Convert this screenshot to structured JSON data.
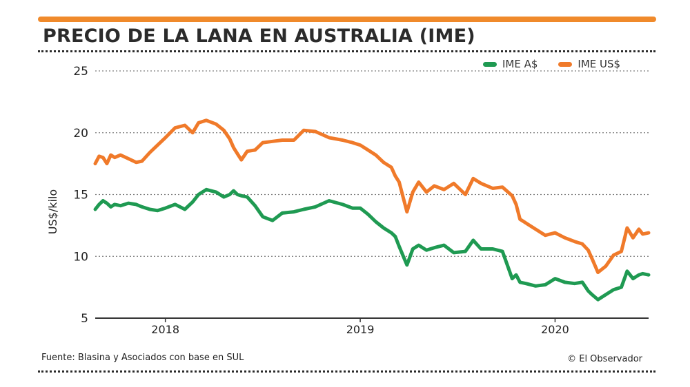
{
  "header": {
    "title": "PRECIO DE LA LANA EN AUSTRALIA (IME)"
  },
  "footer": {
    "source": "Fuente: Blasina y Asociados con base en SUL",
    "credit": "© El Observador"
  },
  "colors": {
    "accent": "#f08a2b",
    "aud_line": "#1f9a52",
    "usd_line": "#f07a2a",
    "grid": "#7a7a7a",
    "axis": "#333333",
    "text": "#222222"
  },
  "chart_data": {
    "type": "line",
    "title": "PRECIO DE LA LANA EN AUSTRALIA (IME)",
    "xlabel": "",
    "ylabel": "US$/kilo",
    "ylim": [
      5,
      25
    ],
    "yticks": [
      5,
      10,
      15,
      20,
      25
    ],
    "xlim": [
      2017.64,
      2020.48
    ],
    "xticks": [
      {
        "value": 2018.0,
        "label": "2018"
      },
      {
        "value": 2019.0,
        "label": "2019"
      },
      {
        "value": 2020.0,
        "label": "2020"
      }
    ],
    "grid": true,
    "legend": "top-right",
    "series": [
      {
        "name": "IME A$",
        "color": "#1f9a52",
        "x": [
          2017.64,
          2017.66,
          2017.68,
          2017.7,
          2017.72,
          2017.74,
          2017.77,
          2017.81,
          2017.85,
          2017.88,
          2017.92,
          2017.96,
          2018.0,
          2018.05,
          2018.1,
          2018.14,
          2018.17,
          2018.21,
          2018.26,
          2018.3,
          2018.33,
          2018.35,
          2018.37,
          2018.39,
          2018.42,
          2018.46,
          2018.5,
          2018.55,
          2018.6,
          2018.66,
          2018.71,
          2018.77,
          2018.84,
          2018.91,
          2018.96,
          2019.0,
          2019.04,
          2019.08,
          2019.12,
          2019.16,
          2019.18,
          2019.2,
          2019.24,
          2019.27,
          2019.3,
          2019.34,
          2019.38,
          2019.43,
          2019.48,
          2019.54,
          2019.58,
          2019.62,
          2019.68,
          2019.73,
          2019.78,
          2019.8,
          2019.82,
          2019.85,
          2019.9,
          2019.95,
          2020.0,
          2020.05,
          2020.1,
          2020.14,
          2020.17,
          2020.19,
          2020.22,
          2020.26,
          2020.3,
          2020.34,
          2020.37,
          2020.4,
          2020.43,
          2020.45,
          2020.48
        ],
        "values": [
          13.8,
          14.2,
          14.5,
          14.3,
          14.0,
          14.2,
          14.1,
          14.3,
          14.2,
          14.0,
          13.8,
          13.7,
          13.9,
          14.2,
          13.8,
          14.4,
          15.0,
          15.4,
          15.2,
          14.8,
          15.0,
          15.3,
          15.0,
          14.9,
          14.8,
          14.1,
          13.2,
          12.9,
          13.5,
          13.6,
          13.8,
          14.0,
          14.5,
          14.2,
          13.9,
          13.9,
          13.4,
          12.8,
          12.3,
          11.9,
          11.6,
          10.8,
          9.3,
          10.6,
          10.9,
          10.5,
          10.7,
          10.9,
          10.3,
          10.4,
          11.3,
          10.6,
          10.6,
          10.4,
          8.2,
          8.5,
          7.9,
          7.8,
          7.6,
          7.7,
          8.2,
          7.9,
          7.8,
          7.9,
          7.2,
          6.9,
          6.5,
          6.9,
          7.3,
          7.5,
          8.8,
          8.2,
          8.5,
          8.6,
          8.5
        ]
      },
      {
        "name": "IME US$",
        "color": "#f07a2a",
        "x": [
          2017.64,
          2017.66,
          2017.68,
          2017.7,
          2017.72,
          2017.74,
          2017.77,
          2017.81,
          2017.85,
          2017.88,
          2017.92,
          2017.96,
          2018.0,
          2018.05,
          2018.1,
          2018.14,
          2018.17,
          2018.21,
          2018.26,
          2018.3,
          2018.33,
          2018.35,
          2018.37,
          2018.39,
          2018.42,
          2018.46,
          2018.5,
          2018.55,
          2018.6,
          2018.66,
          2018.71,
          2018.77,
          2018.84,
          2018.91,
          2018.96,
          2019.0,
          2019.04,
          2019.08,
          2019.12,
          2019.16,
          2019.18,
          2019.2,
          2019.24,
          2019.27,
          2019.3,
          2019.34,
          2019.38,
          2019.43,
          2019.48,
          2019.54,
          2019.58,
          2019.62,
          2019.68,
          2019.73,
          2019.78,
          2019.8,
          2019.82,
          2019.85,
          2019.9,
          2019.95,
          2020.0,
          2020.05,
          2020.1,
          2020.14,
          2020.17,
          2020.19,
          2020.22,
          2020.26,
          2020.3,
          2020.34,
          2020.37,
          2020.4,
          2020.43,
          2020.45,
          2020.48
        ],
        "values": [
          17.5,
          18.1,
          18.0,
          17.5,
          18.2,
          18.0,
          18.2,
          17.9,
          17.6,
          17.7,
          18.4,
          19.0,
          19.6,
          20.4,
          20.6,
          20.0,
          20.8,
          21.0,
          20.7,
          20.2,
          19.5,
          18.8,
          18.3,
          17.8,
          18.5,
          18.6,
          19.2,
          19.3,
          19.4,
          19.4,
          20.2,
          20.1,
          19.6,
          19.4,
          19.2,
          19.0,
          18.6,
          18.2,
          17.6,
          17.2,
          16.5,
          16.0,
          13.6,
          15.2,
          16.0,
          15.2,
          15.7,
          15.4,
          15.9,
          15.0,
          16.3,
          15.9,
          15.5,
          15.6,
          14.9,
          14.2,
          13.0,
          12.7,
          12.2,
          11.7,
          11.9,
          11.5,
          11.2,
          11.0,
          10.5,
          9.8,
          8.7,
          9.2,
          10.1,
          10.4,
          12.3,
          11.5,
          12.2,
          11.8,
          11.9
        ]
      }
    ]
  }
}
